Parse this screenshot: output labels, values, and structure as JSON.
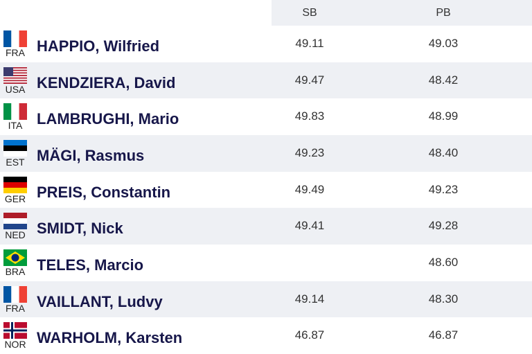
{
  "table": {
    "header": [
      "SB",
      "PB"
    ],
    "rows": [
      {
        "code": "FRA",
        "name": "HAPPIO, Wilfried",
        "sb": "49.11",
        "pb": "49.03"
      },
      {
        "code": "USA",
        "name": "KENDZIERA, David",
        "sb": "49.47",
        "pb": "48.42"
      },
      {
        "code": "ITA",
        "name": "LAMBRUGHI, Mario",
        "sb": "49.83",
        "pb": "48.99"
      },
      {
        "code": "EST",
        "name": "MÄGI, Rasmus",
        "sb": "49.23",
        "pb": "48.40"
      },
      {
        "code": "GER",
        "name": "PREIS, Constantin",
        "sb": "49.49",
        "pb": "49.23"
      },
      {
        "code": "NED",
        "name": "SMIDT, Nick",
        "sb": "49.41",
        "pb": "49.28"
      },
      {
        "code": "BRA",
        "name": "TELES, Marcio",
        "sb": null,
        "pb": "48.60"
      },
      {
        "code": "FRA",
        "name": "VAILLANT, Ludvy",
        "sb": "49.14",
        "pb": "48.30"
      },
      {
        "code": "NOR",
        "name": "WARHOLM, Karsten",
        "sb": "46.87",
        "pb": "46.87"
      }
    ]
  }
}
